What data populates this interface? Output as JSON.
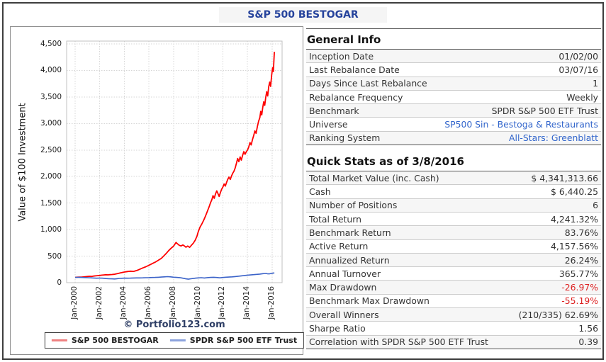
{
  "page_title": "S&P 500 BESTOGAR",
  "chart": {
    "watermark": "© Portfolio123.com",
    "legend": [
      {
        "label": "S&P 500 BESTOGAR",
        "swatch": "#ef8181"
      },
      {
        "label": "SPDR S&P 500 ETF Trust",
        "swatch": "#8ca3dd"
      }
    ]
  },
  "chart_data": {
    "type": "line",
    "title": "S&P 500 BESTOGAR",
    "xlabel": "",
    "ylabel": "Value of $100 Investment",
    "grid": true,
    "legend_position": "bottom",
    "xlim_years": [
      1999.31,
      2016.81
    ],
    "ylim": [
      0,
      4553
    ],
    "x_ticks": [
      "Jan-2000",
      "Jan-2002",
      "Jan-2004",
      "Jan-2006",
      "Jan-2008",
      "Jan-2010",
      "Jan-2012",
      "Jan-2014",
      "Jan-2016"
    ],
    "x_tick_years": [
      2000,
      2002,
      2004,
      2006,
      2008,
      2010,
      2012,
      2014,
      2016
    ],
    "y_tick_values": [
      0,
      500,
      1000,
      1500,
      2000,
      2500,
      3000,
      3500,
      4000,
      4500
    ],
    "y_tick_labels": [
      "0",
      "500",
      "1,000",
      "1,500",
      "2,000",
      "2,500",
      "3,000",
      "3,500",
      "4,000",
      "4,500"
    ],
    "series": [
      {
        "name": "S&P 500 BESTOGAR",
        "color": "#fe0000",
        "width": 1.8,
        "x": [
          2000.0,
          2000.17,
          2000.33,
          2000.5,
          2000.67,
          2000.83,
          2001.0,
          2001.17,
          2001.33,
          2001.5,
          2001.67,
          2001.83,
          2002.0,
          2002.17,
          2002.33,
          2002.5,
          2002.67,
          2002.83,
          2003.0,
          2003.17,
          2003.33,
          2003.5,
          2003.67,
          2003.83,
          2004.0,
          2004.25,
          2004.5,
          2004.75,
          2005.0,
          2005.25,
          2005.5,
          2005.75,
          2006.0,
          2006.25,
          2006.5,
          2006.75,
          2007.0,
          2007.2,
          2007.4,
          2007.6,
          2007.8,
          2008.0,
          2008.1,
          2008.2,
          2008.3,
          2008.45,
          2008.6,
          2008.75,
          2008.9,
          2009.0,
          2009.15,
          2009.3,
          2009.45,
          2009.6,
          2009.75,
          2009.9,
          2010.0,
          2010.15,
          2010.3,
          2010.45,
          2010.6,
          2010.75,
          2010.9,
          2011.0,
          2011.1,
          2011.2,
          2011.3,
          2011.4,
          2011.5,
          2011.6,
          2011.7,
          2011.8,
          2011.9,
          2012.0,
          2012.1,
          2012.2,
          2012.3,
          2012.4,
          2012.5,
          2012.6,
          2012.7,
          2012.8,
          2012.9,
          2013.0,
          2013.1,
          2013.2,
          2013.3,
          2013.4,
          2013.5,
          2013.6,
          2013.7,
          2013.8,
          2013.9,
          2014.0,
          2014.1,
          2014.2,
          2014.3,
          2014.4,
          2014.5,
          2014.6,
          2014.7,
          2014.8,
          2014.9,
          2015.0,
          2015.08,
          2015.16,
          2015.24,
          2015.32,
          2015.4,
          2015.48,
          2015.56,
          2015.64,
          2015.72,
          2015.8,
          2015.88,
          2015.96,
          2016.04,
          2016.1,
          2016.15,
          2016.18
        ],
        "y": [
          100,
          103,
          106,
          104,
          108,
          112,
          116,
          120,
          118,
          124,
          128,
          132,
          136,
          142,
          146,
          150,
          147,
          151,
          153,
          158,
          165,
          174,
          183,
          192,
          200,
          210,
          216,
          212,
          228,
          252,
          278,
          300,
          328,
          358,
          386,
          420,
          458,
          505,
          550,
          605,
          650,
          690,
          725,
          758,
          735,
          705,
          692,
          710,
          688,
          668,
          690,
          665,
          705,
          745,
          800,
          880,
          960,
          1050,
          1110,
          1180,
          1260,
          1350,
          1440,
          1510,
          1560,
          1640,
          1590,
          1670,
          1730,
          1680,
          1625,
          1700,
          1760,
          1800,
          1860,
          1820,
          1890,
          1950,
          1990,
          1945,
          2010,
          2060,
          2100,
          2160,
          2250,
          2340,
          2280,
          2370,
          2310,
          2395,
          2470,
          2420,
          2465,
          2500,
          2555,
          2640,
          2595,
          2690,
          2770,
          2860,
          2815,
          2940,
          3040,
          3110,
          3230,
          3160,
          3300,
          3410,
          3340,
          3490,
          3600,
          3520,
          3690,
          3780,
          3700,
          3900,
          4050,
          3980,
          4200,
          4350
        ]
      },
      {
        "name": "SPDR S&P 500 ETF Trust",
        "color": "#3a62c8",
        "width": 1.6,
        "x": [
          2000.0,
          2000.25,
          2000.5,
          2000.75,
          2001.0,
          2001.25,
          2001.5,
          2001.75,
          2002.0,
          2002.25,
          2002.5,
          2002.75,
          2003.0,
          2003.2,
          2003.4,
          2003.6,
          2003.8,
          2004.0,
          2004.25,
          2004.5,
          2004.75,
          2005.0,
          2005.25,
          2005.5,
          2005.75,
          2006.0,
          2006.25,
          2006.5,
          2006.75,
          2007.0,
          2007.25,
          2007.5,
          2007.75,
          2008.0,
          2008.25,
          2008.5,
          2008.75,
          2008.9,
          2009.0,
          2009.2,
          2009.4,
          2009.6,
          2009.8,
          2010.0,
          2010.25,
          2010.5,
          2010.75,
          2011.0,
          2011.25,
          2011.5,
          2011.75,
          2012.0,
          2012.25,
          2012.5,
          2012.75,
          2013.0,
          2013.25,
          2013.5,
          2013.75,
          2014.0,
          2014.25,
          2014.5,
          2014.75,
          2015.0,
          2015.25,
          2015.5,
          2015.6,
          2015.75,
          2015.9,
          2016.0,
          2016.18
        ],
        "y": [
          100,
          102,
          99,
          96,
          94,
          91,
          88,
          84,
          87,
          84,
          78,
          73,
          72,
          70,
          75,
          80,
          83,
          85,
          84,
          86,
          88,
          90,
          89,
          91,
          93,
          95,
          97,
          99,
          102,
          105,
          109,
          113,
          110,
          103,
          99,
          95,
          84,
          78,
          72,
          66,
          73,
          79,
          86,
          90,
          93,
          88,
          95,
          99,
          101,
          97,
          91,
          98,
          103,
          105,
          109,
          115,
          122,
          128,
          135,
          141,
          146,
          151,
          156,
          161,
          169,
          173,
          168,
          165,
          172,
          176,
          184
        ]
      }
    ]
  },
  "general_info": {
    "title": "General Info",
    "rows": [
      {
        "label": "Inception Date",
        "value": "01/02/00",
        "style": "plain"
      },
      {
        "label": "Last Rebalance Date",
        "value": "03/07/16",
        "style": "plain"
      },
      {
        "label": "Days Since Last Rebalance",
        "value": "1",
        "style": "plain"
      },
      {
        "label": "Rebalance Frequency",
        "value": "Weekly",
        "style": "plain"
      },
      {
        "label": "Benchmark",
        "value": "SPDR S&P 500 ETF Trust",
        "style": "plain"
      },
      {
        "label": "Universe",
        "value": "SP500 Sin - Bestoga & Restaurants",
        "style": "link"
      },
      {
        "label": "Ranking System",
        "value": "All-Stars: Greenblatt",
        "style": "link"
      }
    ]
  },
  "quick_stats": {
    "title": "Quick Stats as of 3/8/2016",
    "rows": [
      {
        "label": "Total Market Value (inc. Cash)",
        "value": "$ 4,341,313.66",
        "style": "plain"
      },
      {
        "label": "Cash",
        "value": "$ 6,440.25",
        "style": "plain"
      },
      {
        "label": "Number of Positions",
        "value": "6",
        "style": "plain"
      },
      {
        "label": "Total Return",
        "value": "4,241.32%",
        "style": "plain"
      },
      {
        "label": "Benchmark Return",
        "value": "83.76%",
        "style": "plain"
      },
      {
        "label": "Active Return",
        "value": "4,157.56%",
        "style": "plain"
      },
      {
        "label": "Annualized Return",
        "value": "26.24%",
        "style": "plain"
      },
      {
        "label": "Annual Turnover",
        "value": "365.77%",
        "style": "plain"
      },
      {
        "label": "Max Drawdown",
        "value": "-26.97%",
        "style": "negative"
      },
      {
        "label": "Benchmark Max Drawdown",
        "value": "-55.19%",
        "style": "negative"
      },
      {
        "label": "Overall Winners",
        "value": "(210/335) 62.69%",
        "style": "plain"
      },
      {
        "label": "Sharpe Ratio",
        "value": "1.56",
        "style": "plain"
      },
      {
        "label": "Correlation with SPDR S&P 500 ETF Trust",
        "value": "0.39",
        "style": "plain"
      }
    ]
  }
}
